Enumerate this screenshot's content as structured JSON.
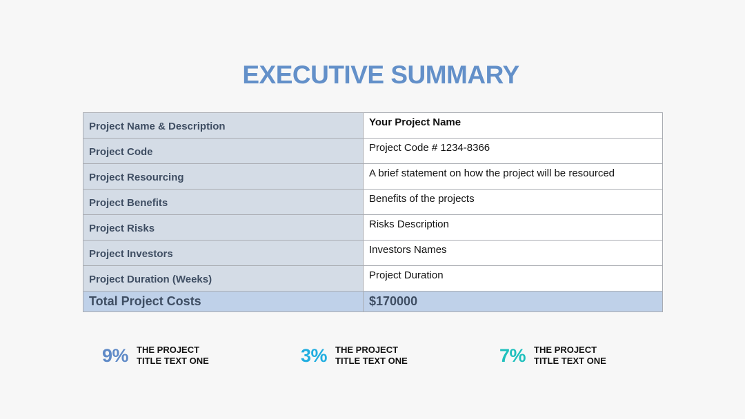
{
  "title": "EXECUTIVE SUMMARY",
  "rows": [
    {
      "label": "Project Name & Description",
      "value": "Your Project Name"
    },
    {
      "label": "Project Code",
      "value": "Project Code # 1234-8366"
    },
    {
      "label": "Project Resourcing",
      "value": "A brief statement on how the project will be resourced"
    },
    {
      "label": "Project Benefits",
      "value": "Benefits of the projects"
    },
    {
      "label": "Project Risks",
      "value": "Risks Description"
    },
    {
      "label": "Project Investors",
      "value": "Investors Names"
    },
    {
      "label": "Project Duration (Weeks)",
      "value": "Project Duration"
    }
  ],
  "total": {
    "label": "Total Project Costs",
    "value": "$170000"
  },
  "stats": [
    {
      "pct": "9%",
      "text": "THE PROJECT TITLE TEXT ONE",
      "color": "#5f8ac7"
    },
    {
      "pct": "3%",
      "text": "THE PROJECT TITLE TEXT ONE",
      "color": "#22aee0"
    },
    {
      "pct": "7%",
      "text": "THE PROJECT TITLE TEXT ONE",
      "color": "#1fc0bd"
    }
  ]
}
